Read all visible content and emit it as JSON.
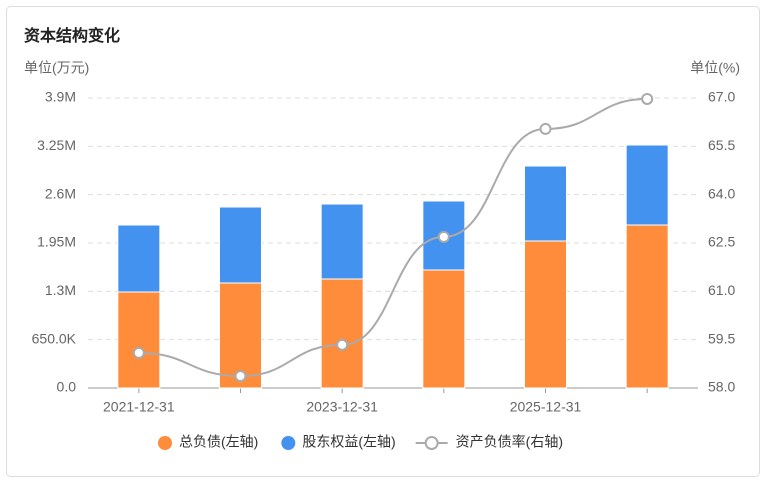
{
  "chart_data": {
    "type": "bar",
    "stacked": true,
    "title": "资本结构变化",
    "y_label": "单位(万元)",
    "y2_label": "单位(%)",
    "categories": [
      "2021-12-31",
      null,
      "2023-12-31",
      null,
      "2025-12-31",
      null
    ],
    "series": [
      {
        "name": "总负债(左轴)",
        "color": "#ff8c3a",
        "values": [
          1291000,
          1412000,
          1466000,
          1587000,
          1977000,
          2192000
        ]
      },
      {
        "name": "股东权益(左轴)",
        "color": "#4492f0",
        "values": [
          901000,
          1022000,
          1008000,
          928000,
          1008000,
          1076000
        ]
      },
      {
        "name": "资产负债率(右轴)",
        "color": "#aaaaaa",
        "type": "line",
        "axis": "y2",
        "values": [
          59.09,
          58.37,
          59.34,
          62.69,
          66.04,
          66.97
        ]
      }
    ],
    "ylim": [
      0,
      3900000
    ],
    "yticks": [
      {
        "value": 0,
        "label": "0.0"
      },
      {
        "value": 650000,
        "label": "650.0K"
      },
      {
        "value": 1300000,
        "label": "1.3M"
      },
      {
        "value": 1950000,
        "label": "1.95M"
      },
      {
        "value": 2600000,
        "label": "2.6M"
      },
      {
        "value": 3250000,
        "label": "3.25M"
      },
      {
        "value": 3900000,
        "label": "3.9M"
      }
    ],
    "y2lim": [
      58,
      67
    ],
    "y2ticks": [
      {
        "value": 58,
        "label": "58.0"
      },
      59.5,
      {
        "value": 61,
        "label": "61.0"
      },
      62.5,
      {
        "value": 64,
        "label": "64.0"
      },
      65.5,
      {
        "value": 67,
        "label": "67.0"
      }
    ],
    "grid": true
  }
}
